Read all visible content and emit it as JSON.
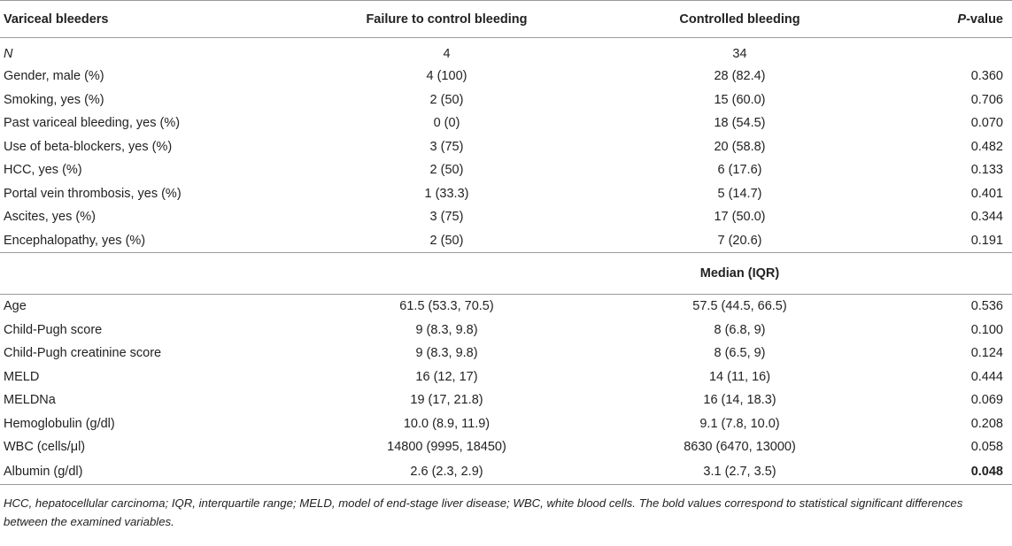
{
  "header": {
    "col1": "Variceal bleeders",
    "col2": "Failure to control bleeding",
    "col3": "Controlled bleeding",
    "col4_italic": "P",
    "col4_rest": "-value"
  },
  "count_row": {
    "label": "N",
    "failure": "4",
    "controlled": "34",
    "p": ""
  },
  "categorical_rows": [
    {
      "label": "Gender, male (%)",
      "failure": "4 (100)",
      "controlled": "28 (82.4)",
      "p": "0.360"
    },
    {
      "label": "Smoking, yes (%)",
      "failure": "2 (50)",
      "controlled": "15 (60.0)",
      "p": "0.706"
    },
    {
      "label": "Past variceal bleeding, yes (%)",
      "failure": "0 (0)",
      "controlled": "18 (54.5)",
      "p": "0.070"
    },
    {
      "label": "Use of beta-blockers, yes (%)",
      "failure": "3 (75)",
      "controlled": "20 (58.8)",
      "p": "0.482"
    },
    {
      "label": "HCC, yes (%)",
      "failure": "2 (50)",
      "controlled": "6 (17.6)",
      "p": "0.133"
    },
    {
      "label": "Portal vein thrombosis, yes (%)",
      "failure": "1 (33.3)",
      "controlled": "5 (14.7)",
      "p": "0.401"
    },
    {
      "label": "Ascites, yes (%)",
      "failure": "3 (75)",
      "controlled": "17 (50.0)",
      "p": "0.344"
    },
    {
      "label": "Encephalopathy, yes (%)",
      "failure": "2 (50)",
      "controlled": "7 (20.6)",
      "p": "0.191"
    }
  ],
  "median_header": "Median (IQR)",
  "median_rows": [
    {
      "label": "Age",
      "failure": "61.5 (53.3, 70.5)",
      "controlled": "57.5 (44.5, 66.5)",
      "p": "0.536"
    },
    {
      "label": "Child-Pugh score",
      "failure": "9 (8.3, 9.8)",
      "controlled": "8 (6.8, 9)",
      "p": "0.100"
    },
    {
      "label": "Child-Pugh creatinine score",
      "failure": "9 (8.3, 9.8)",
      "controlled": "8 (6.5, 9)",
      "p": "0.124"
    },
    {
      "label": "MELD",
      "failure": "16 (12, 17)",
      "controlled": "14 (11, 16)",
      "p": "0.444"
    },
    {
      "label": "MELDNa",
      "failure": "19 (17, 21.8)",
      "controlled": "16 (14, 18.3)",
      "p": "0.069"
    },
    {
      "label": "Hemoglobulin (g/dl)",
      "failure": "10.0 (8.9, 11.9)",
      "controlled": "9.1 (7.8, 10.0)",
      "p": "0.208"
    },
    {
      "label": "WBC (cells/μl)",
      "failure": "14800 (9995, 18450)",
      "controlled": "8630 (6470, 13000)",
      "p": "0.058"
    },
    {
      "label": "Albumin (g/dl)",
      "failure": "2.6 (2.3, 2.9)",
      "controlled": "3.1 (2.7, 3.5)",
      "p": "0.048"
    }
  ],
  "footnote": "HCC, hepatocellular carcinoma; IQR, interquartile range; MELD, model of end-stage liver disease; WBC, white blood cells. The bold values correspond to statistical significant differences between the examined variables."
}
